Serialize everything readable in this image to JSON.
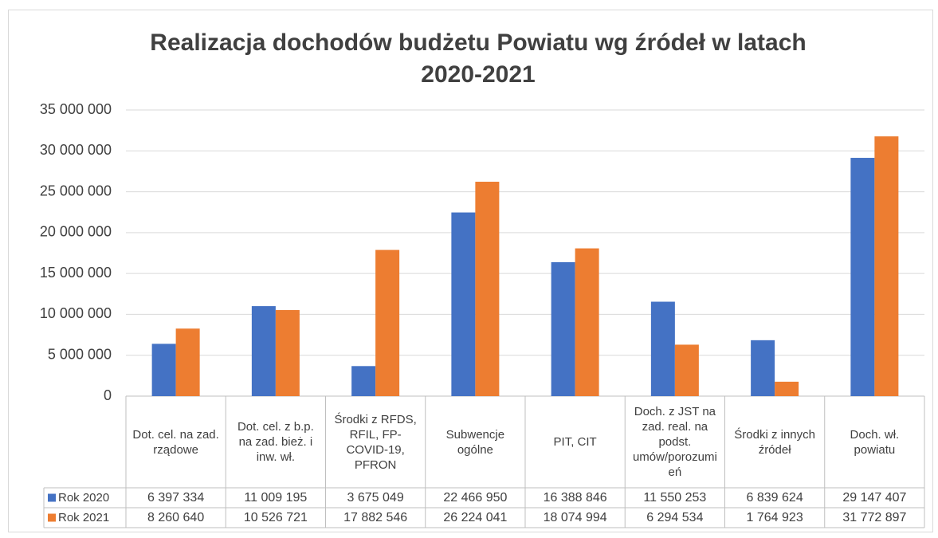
{
  "chart_data": {
    "type": "bar",
    "title": "Realizacja dochodów budżetu Powiatu wg źródeł w latach 2020-2021",
    "categories": [
      "Dot. cel. na zad. rządowe",
      "Dot. cel. z b.p. na zad. bież. i inw. wł.",
      "Środki z RFDS, RFIL, FP-COVID-19, PFRON",
      "Subwencje ogólne",
      "PIT, CIT",
      "Doch. z JST na zad. real. na podst. umów/porozumień",
      "Środki z innych źródeł",
      "Doch. wł. powiatu"
    ],
    "series": [
      {
        "name": "Rok 2020",
        "color": "#4472c4",
        "values": [
          6397334,
          11009195,
          3675049,
          22466950,
          16388846,
          11550253,
          6839624,
          29147407
        ],
        "value_labels": [
          "6 397 334",
          "11 009 195",
          "3 675 049",
          "22 466 950",
          "16 388 846",
          "11 550 253",
          "6 839 624",
          "29 147 407"
        ]
      },
      {
        "name": "Rok 2021",
        "color": "#ed7d31",
        "values": [
          8260640,
          10526721,
          17882546,
          26224041,
          18074994,
          6294534,
          1764923,
          31772897
        ],
        "value_labels": [
          "8 260 640",
          "10 526 721",
          "17 882 546",
          "26 224 041",
          "18 074 994",
          "6 294 534",
          "1 764 923",
          "31 772 897"
        ]
      }
    ],
    "ylim": [
      0,
      35000000
    ],
    "yticks": [
      0,
      {
        "value": 5000000,
        "label": "5 000 000"
      },
      {
        "value": 10000000,
        "label": "10 000 000"
      },
      {
        "value": 15000000,
        "label": "15 000 000"
      },
      {
        "value": 20000000,
        "label": "20 000 000"
      },
      {
        "value": 25000000,
        "label": "25 000 000"
      },
      {
        "value": 30000000,
        "label": "30 000 000"
      },
      {
        "value": 35000000,
        "label": "35 000 000"
      }
    ],
    "grid": true
  }
}
